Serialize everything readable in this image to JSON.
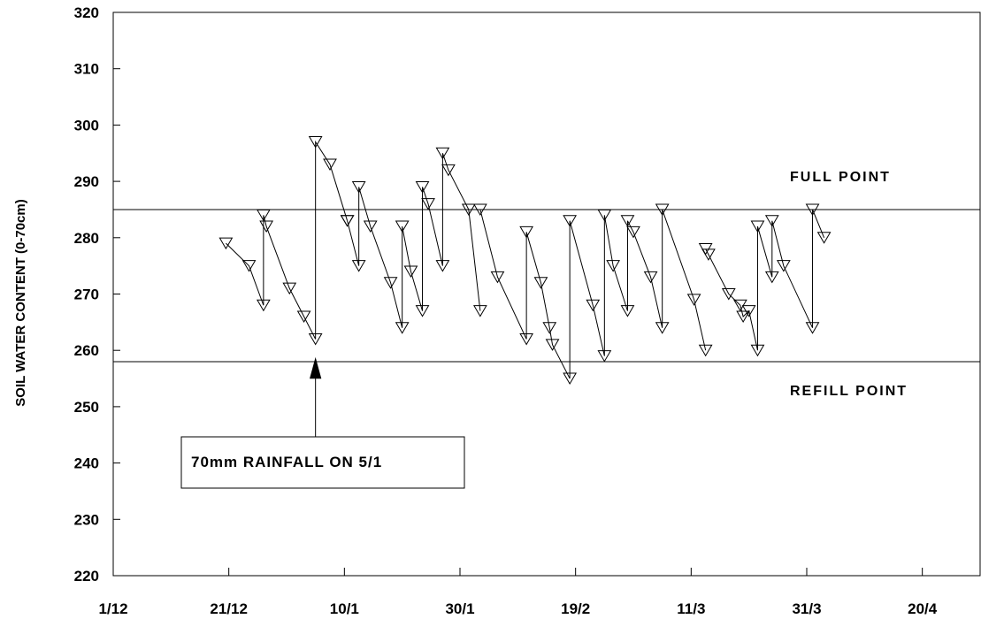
{
  "chart_data": {
    "type": "line",
    "ylabel": "SOIL WATER CONTENT (0-70cm)",
    "xlabel": "",
    "ylim": [
      220,
      320
    ],
    "yticks": [
      220,
      230,
      240,
      250,
      260,
      270,
      280,
      290,
      300,
      310,
      320
    ],
    "xticks": [
      {
        "label": "1/12",
        "day": 0
      },
      {
        "label": "21/12",
        "day": 20
      },
      {
        "label": "10/1",
        "day": 40
      },
      {
        "label": "30/1",
        "day": 60
      },
      {
        "label": "19/2",
        "day": 80
      },
      {
        "label": "11/3",
        "day": 100
      },
      {
        "label": "31/3",
        "day": 120
      },
      {
        "label": "20/4",
        "day": 140
      }
    ],
    "xlim_days": [
      0,
      150
    ],
    "reference_lines": [
      {
        "label": "FULL POINT",
        "value": 285
      },
      {
        "label": "REFILL POINT",
        "value": 258
      }
    ],
    "annotation": {
      "text": "70mm RAINFALL ON 5/1",
      "arrow_day": 35,
      "arrow_tip_value": 258.5
    },
    "marker": "triangle-down",
    "series": [
      {
        "points": [
          [
            19.5,
            279
          ],
          [
            23.5,
            275
          ],
          [
            26,
            268
          ],
          [
            26,
            284
          ],
          [
            26.5,
            282
          ],
          [
            30.5,
            271
          ],
          [
            33,
            266
          ],
          [
            35,
            262
          ],
          [
            35,
            297
          ],
          [
            37.5,
            293
          ],
          [
            40.5,
            283
          ]
        ]
      },
      {
        "points": [
          [
            40.5,
            283
          ],
          [
            42.5,
            275
          ],
          [
            42.5,
            289
          ],
          [
            44.5,
            282
          ],
          [
            48,
            272
          ],
          [
            50,
            264
          ],
          [
            50,
            282
          ],
          [
            51.5,
            274
          ],
          [
            53.5,
            267
          ],
          [
            53.5,
            289
          ],
          [
            54.5,
            286
          ],
          [
            57,
            275
          ],
          [
            57,
            295
          ],
          [
            58,
            292
          ],
          [
            61.5,
            285
          ],
          [
            63.5,
            267
          ]
        ]
      },
      {
        "points": [
          [
            63.5,
            285
          ],
          [
            66.5,
            273
          ],
          [
            71.5,
            262
          ],
          [
            71.5,
            281
          ],
          [
            74,
            272
          ],
          [
            75.5,
            264
          ],
          [
            76,
            261
          ],
          [
            79,
            255
          ],
          [
            79,
            283
          ],
          [
            83,
            268
          ],
          [
            85,
            259
          ],
          [
            85,
            284
          ],
          [
            86.5,
            275
          ],
          [
            89,
            267
          ],
          [
            89,
            283
          ],
          [
            90,
            281
          ],
          [
            93,
            273
          ],
          [
            95,
            264
          ],
          [
            95,
            285
          ],
          [
            100.5,
            269
          ],
          [
            102.5,
            260
          ]
        ]
      },
      {
        "points": [
          [
            102.5,
            278
          ],
          [
            103,
            277
          ],
          [
            106.5,
            270
          ],
          [
            108.5,
            268
          ],
          [
            109,
            266
          ],
          [
            110,
            267
          ],
          [
            111.5,
            260
          ],
          [
            111.5,
            282
          ],
          [
            114,
            273
          ],
          [
            114,
            283
          ],
          [
            116,
            275
          ],
          [
            121,
            264
          ],
          [
            121,
            285
          ],
          [
            123,
            280
          ]
        ]
      }
    ]
  }
}
